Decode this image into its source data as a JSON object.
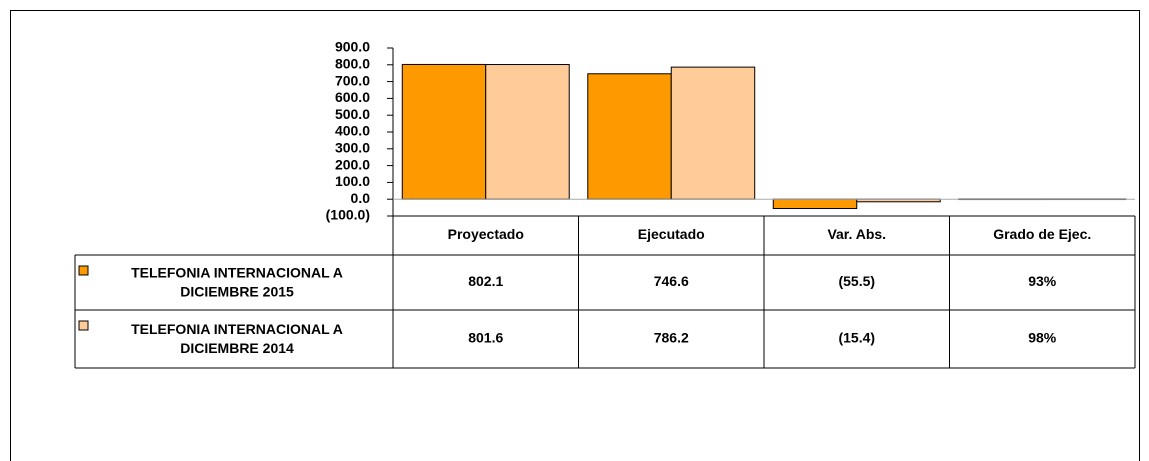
{
  "chart_data": {
    "type": "bar",
    "categories": [
      "Proyectado",
      "Ejecutado",
      "Var. Abs.",
      "Grado de Ejec."
    ],
    "series": [
      {
        "name": "TELEFONIA INTERNACIONAL A DICIEMBRE 2015",
        "color": "#ff9900",
        "values": [
          802.1,
          746.6,
          -55.5,
          0.93
        ],
        "value_labels": [
          "802.1",
          "746.6",
          "(55.5)",
          "93%"
        ]
      },
      {
        "name": "TELEFONIA INTERNACIONAL A DICIEMBRE 2014",
        "color": "#ffcc99",
        "values": [
          801.6,
          786.2,
          -15.4,
          0.98
        ],
        "value_labels": [
          "801.6",
          "786.2",
          "(15.4)",
          "98%"
        ]
      }
    ],
    "ylim": [
      -100,
      900
    ],
    "yticks": [
      {
        "value": -100,
        "label": "(100.0)"
      },
      {
        "value": 0,
        "label": "0.0"
      },
      {
        "value": 100,
        "label": "100.0"
      },
      {
        "value": 200,
        "label": "200.0"
      },
      {
        "value": 300,
        "label": "300.0"
      },
      {
        "value": 400,
        "label": "400.0"
      },
      {
        "value": 500,
        "label": "500.0"
      },
      {
        "value": 600,
        "label": "600.0"
      },
      {
        "value": 700,
        "label": "700.0"
      },
      {
        "value": 800,
        "label": "800.0"
      },
      {
        "value": 900,
        "label": "900.0"
      }
    ],
    "negative_tick_color": "#ff0000"
  }
}
